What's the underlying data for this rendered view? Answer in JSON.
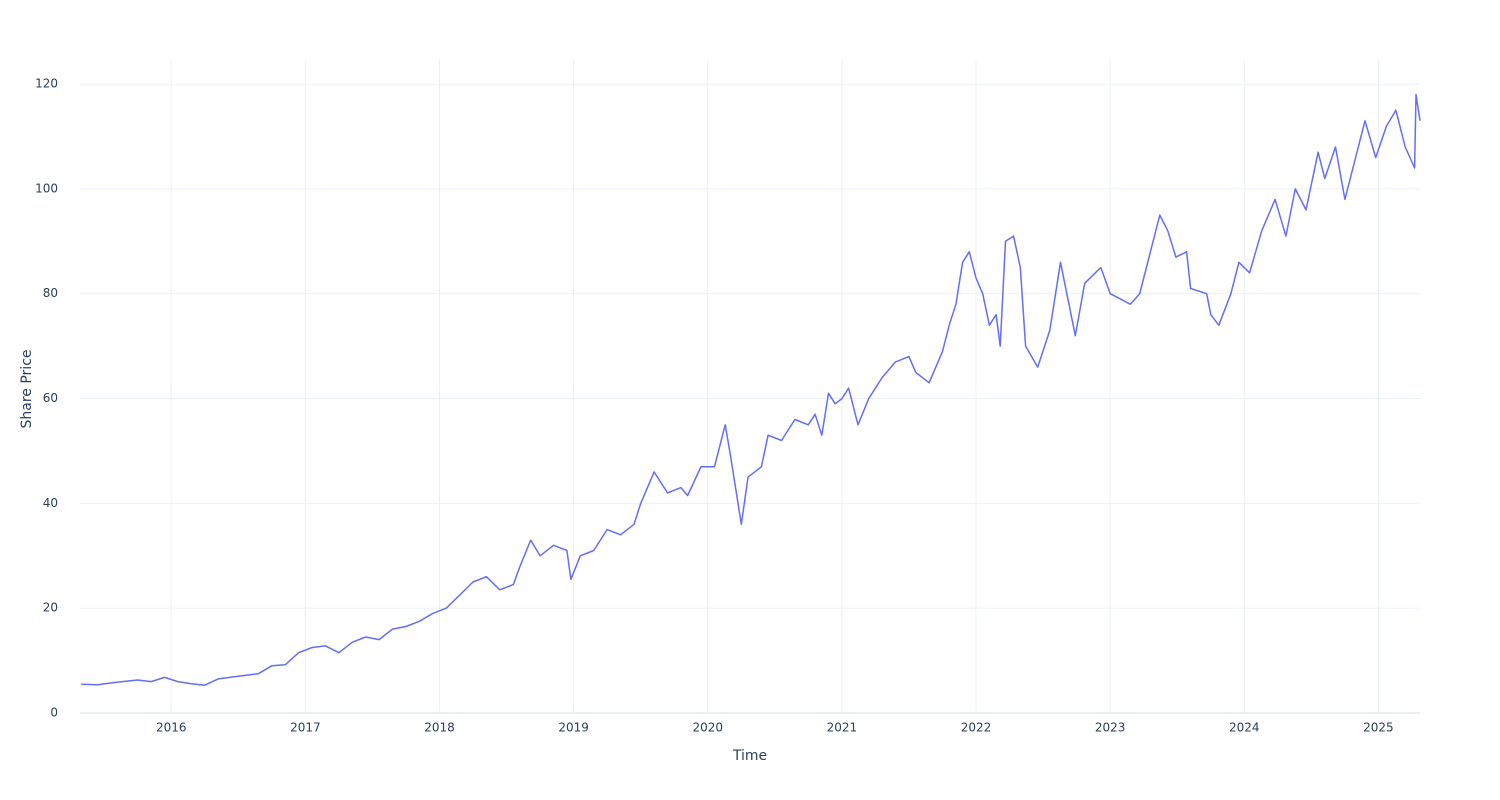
{
  "chart_data": {
    "type": "line",
    "xlabel": "Time",
    "ylabel": "Share Price",
    "color": "#636efa",
    "grid": true,
    "xlim": [
      2015.32,
      2025.31
    ],
    "ylim": [
      0,
      124.6
    ],
    "xticks": [
      2016,
      2017,
      2018,
      2019,
      2020,
      2021,
      2022,
      2023,
      2024,
      2025
    ],
    "yticks": [
      0,
      20,
      40,
      60,
      80,
      100,
      120
    ],
    "x": [
      2015.33,
      2015.45,
      2015.6,
      2015.75,
      2015.85,
      2015.95,
      2016.05,
      2016.15,
      2016.25,
      2016.35,
      2016.5,
      2016.65,
      2016.75,
      2016.85,
      2016.95,
      2017.05,
      2017.15,
      2017.25,
      2017.35,
      2017.45,
      2017.55,
      2017.65,
      2017.75,
      2017.85,
      2017.95,
      2018.05,
      2018.15,
      2018.25,
      2018.35,
      2018.45,
      2018.55,
      2018.6,
      2018.68,
      2018.75,
      2018.85,
      2018.95,
      2018.98,
      2019.05,
      2019.15,
      2019.25,
      2019.35,
      2019.45,
      2019.5,
      2019.6,
      2019.7,
      2019.8,
      2019.85,
      2019.95,
      2020.05,
      2020.13,
      2020.17,
      2020.25,
      2020.3,
      2020.4,
      2020.45,
      2020.55,
      2020.65,
      2020.75,
      2020.8,
      2020.85,
      2020.9,
      2020.95,
      2021.0,
      2021.05,
      2021.12,
      2021.2,
      2021.3,
      2021.4,
      2021.5,
      2021.55,
      2021.65,
      2021.75,
      2021.8,
      2021.85,
      2021.9,
      2021.95,
      2022.0,
      2022.05,
      2022.1,
      2022.15,
      2022.18,
      2022.22,
      2022.28,
      2022.33,
      2022.37,
      2022.46,
      2022.55,
      2022.63,
      2022.74,
      2022.81,
      2022.93,
      2023.0,
      2023.15,
      2023.22,
      2023.37,
      2023.43,
      2023.49,
      2023.57,
      2023.6,
      2023.72,
      2023.75,
      2023.81,
      2023.9,
      2023.96,
      2024.04,
      2024.13,
      2024.23,
      2024.31,
      2024.38,
      2024.46,
      2024.55,
      2024.6,
      2024.68,
      2024.75,
      2024.83,
      2024.9,
      2024.98,
      2025.06,
      2025.13,
      2025.2,
      2025.27,
      2025.28,
      2025.31
    ],
    "values": [
      5.5,
      5.4,
      5.9,
      6.3,
      6.0,
      6.8,
      6.0,
      5.6,
      5.3,
      6.5,
      7.0,
      7.5,
      9.0,
      9.2,
      11.5,
      12.5,
      12.8,
      11.5,
      13.5,
      14.5,
      14.0,
      16.0,
      16.5,
      17.5,
      19.0,
      20.0,
      22.5,
      25.0,
      26.0,
      23.5,
      24.5,
      28.0,
      33.0,
      30.0,
      32.0,
      31.0,
      25.5,
      30.0,
      31.0,
      35.0,
      34.0,
      36.0,
      40.0,
      46.0,
      42.0,
      43.0,
      41.5,
      47.0,
      47.0,
      55.0,
      49.0,
      36.0,
      45.0,
      47.0,
      53.0,
      52.0,
      56.0,
      55.0,
      57.0,
      53.0,
      61.0,
      59.0,
      60.0,
      62.0,
      55.0,
      60.0,
      64.0,
      67.0,
      68.0,
      65.0,
      63.0,
      69.0,
      74.0,
      78.0,
      86.0,
      88.0,
      83.0,
      80.0,
      74.0,
      76.0,
      70.0,
      90.0,
      91.0,
      85.0,
      70.0,
      66.0,
      73.0,
      86.0,
      72.0,
      82.0,
      85.0,
      80.0,
      78.0,
      80.0,
      95.0,
      92.0,
      87.0,
      88.0,
      81.0,
      80.0,
      76.0,
      74.0,
      80.0,
      86.0,
      84.0,
      92.0,
      98.0,
      91.0,
      100.0,
      96.0,
      107.0,
      102.0,
      108.0,
      98.0,
      106.0,
      113.0,
      106.0,
      112.0,
      115.0,
      108.0,
      104.0,
      118.0,
      113.0
    ]
  }
}
